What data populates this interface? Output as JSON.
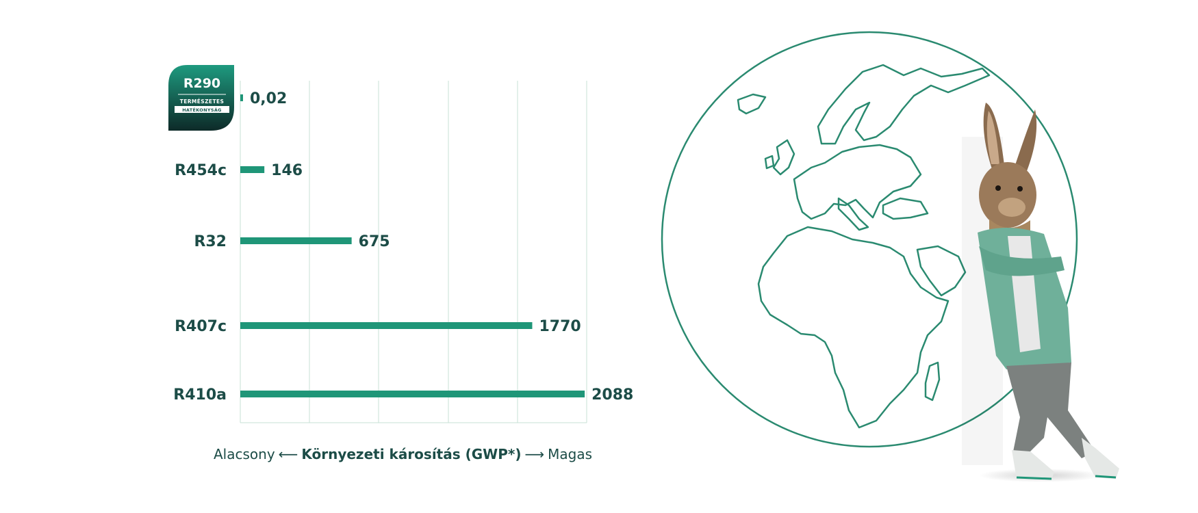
{
  "chart_data": {
    "type": "bar",
    "orientation": "horizontal",
    "categories": [
      "R290",
      "R454c",
      "R32",
      "R407c",
      "R410a"
    ],
    "value_labels": [
      "0,02",
      "146",
      "675",
      "1770",
      "2088"
    ],
    "values": [
      0.02,
      146,
      675,
      1770,
      2088
    ],
    "xlim": [
      0,
      2100
    ],
    "grid": true,
    "bar_color": "#1f9678",
    "highlight_badge": {
      "category": "R290",
      "title": "R290",
      "subtitle_1": "TERMÉSZETES",
      "subtitle_2": "HATÉKONYSÁG"
    },
    "axis_caption": {
      "low": "Alacsony",
      "low_arrow": "⟵",
      "title": "Környezeti károsítás (GWP*)",
      "high_arrow": "⟶",
      "high": "Magas"
    }
  },
  "illustration": {
    "subject": "globe-outline-with-rabbit-mascot",
    "line_color": "#2a8a70"
  }
}
